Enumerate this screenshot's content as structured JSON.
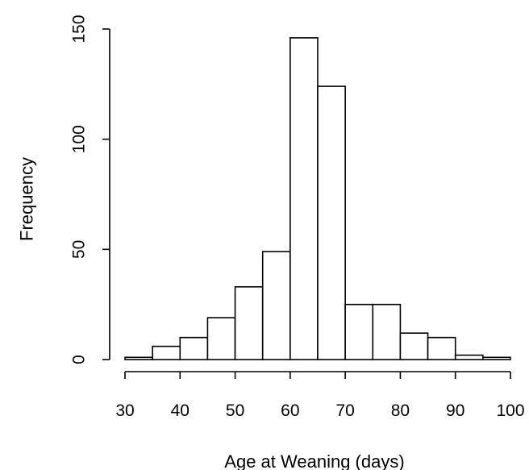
{
  "chart_data": {
    "type": "bar",
    "title": "",
    "xlabel": "Age at Weaning (days)",
    "ylabel": "Frequency",
    "bin_edges": [
      30,
      35,
      40,
      45,
      50,
      55,
      60,
      65,
      70,
      75,
      80,
      85,
      90,
      95,
      100
    ],
    "values": [
      1,
      6,
      10,
      19,
      33,
      49,
      146,
      124,
      25,
      25,
      12,
      10,
      2,
      1
    ],
    "xlim": [
      30,
      100
    ],
    "ylim": [
      0,
      150
    ],
    "x_ticks": [
      30,
      40,
      50,
      60,
      70,
      80,
      90,
      100
    ],
    "x_tick_labels": [
      "30",
      "40",
      "50",
      "60",
      "70",
      "80",
      "90",
      "100"
    ],
    "y_ticks": [
      0,
      50,
      100,
      150
    ],
    "y_tick_labels": [
      "0",
      "50",
      "100",
      "150"
    ],
    "grid": false,
    "legend": "none",
    "colors": {
      "bar_fill": "#ffffff",
      "bar_stroke": "#000000"
    }
  }
}
